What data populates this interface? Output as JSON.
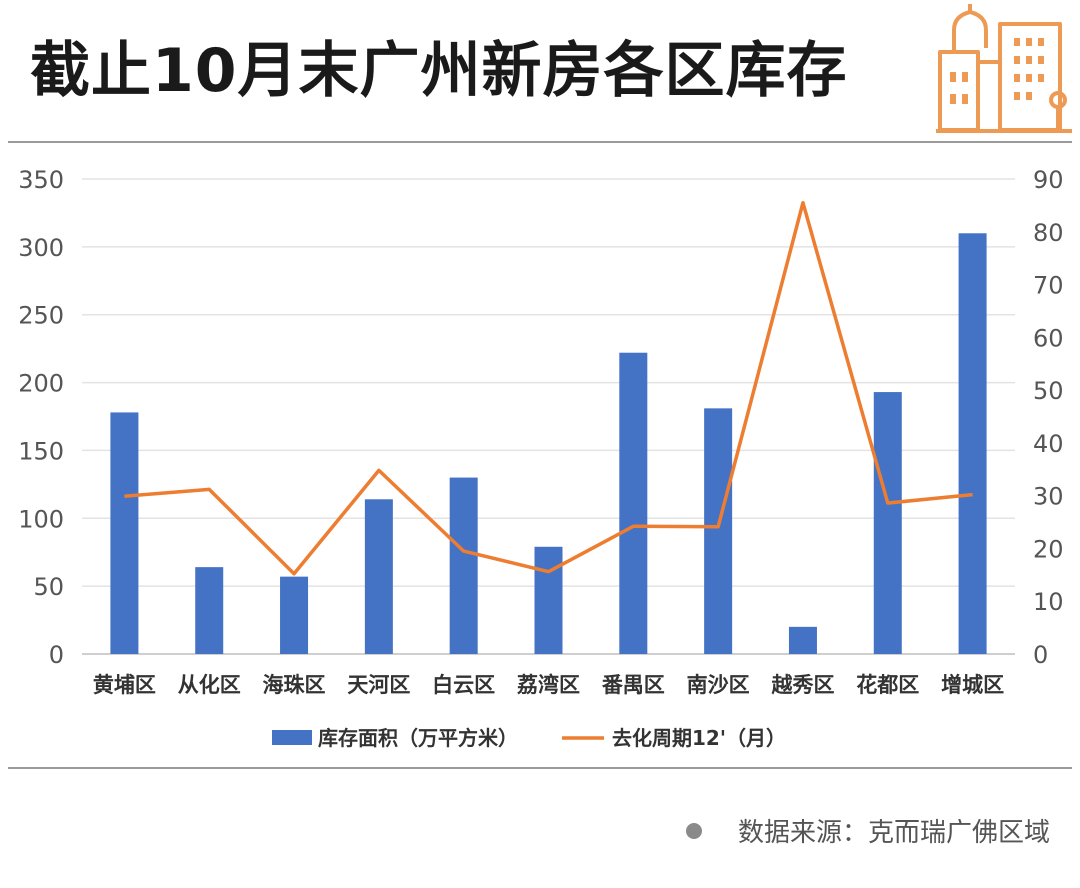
{
  "title": "截止10月末广州新房各区库存",
  "icon": "city-buildings-icon",
  "source": "数据来源：克而瑞广佛区域",
  "chart_data": {
    "type": "bar",
    "categories": [
      "黄埔区",
      "从化区",
      "海珠区",
      "天河区",
      "白云区",
      "荔湾区",
      "番禺区",
      "南沙区",
      "越秀区",
      "花都区",
      "增城区"
    ],
    "series": [
      {
        "name": "库存面积（万平方米）",
        "type": "bar",
        "axis": "left",
        "color": "#4472C4",
        "values": [
          178,
          64,
          57,
          114,
          130,
          79,
          222,
          181,
          20,
          193,
          310
        ]
      },
      {
        "name": "去化周期12'（月）",
        "type": "line",
        "axis": "right",
        "color": "#ED7D31",
        "values": [
          29.9,
          31.2,
          15.2,
          34.8,
          19.5,
          15.6,
          24.2,
          24.1,
          85.5,
          28.6,
          30.2
        ]
      }
    ],
    "ylim_left": [
      0,
      350
    ],
    "yticks_left": [
      0,
      50,
      100,
      150,
      200,
      250,
      300,
      350
    ],
    "ylim_right": [
      0,
      90
    ],
    "yticks_right": [
      0,
      10,
      20,
      30,
      40,
      50,
      60,
      70,
      80,
      90
    ],
    "grid": true,
    "legend": "bottom"
  }
}
